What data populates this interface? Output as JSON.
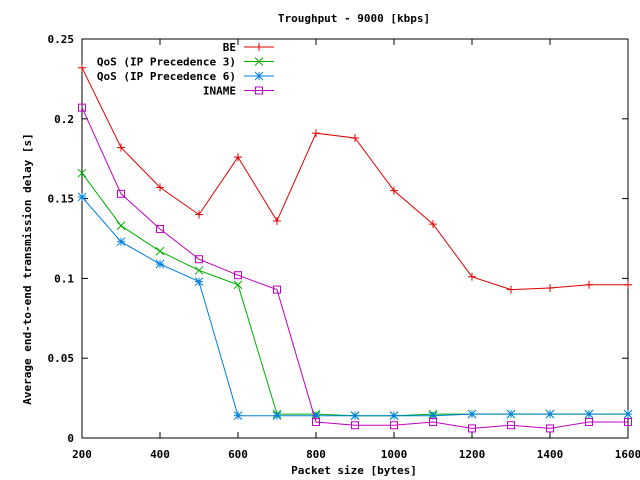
{
  "chart_data": {
    "type": "line",
    "title": "Troughput - 9000 [kbps]",
    "xlabel": "Packet size [bytes]",
    "ylabel": "Average end-to-end transmission delay [s]",
    "xlim": [
      200,
      1600
    ],
    "ylim": [
      0,
      0.25
    ],
    "xticks": [
      200,
      400,
      600,
      800,
      1000,
      1200,
      1400,
      1600
    ],
    "xtick_labels": [
      "200",
      "400",
      "600",
      "800",
      "1000",
      "1200",
      "1400",
      "1600"
    ],
    "yticks": [
      0,
      0.05,
      0.1,
      0.15,
      0.2,
      0.25
    ],
    "ytick_labels": [
      "0",
      "0.05",
      "0.1",
      "0.15",
      "0.2",
      "0.25"
    ],
    "grid": false,
    "legend_position": "top-right",
    "series": [
      {
        "name": "BE",
        "color": "#e00000",
        "marker": "plus",
        "x": [
          200,
          300,
          400,
          500,
          600,
          700,
          800,
          900,
          1000,
          1100,
          1200,
          1300,
          1400,
          1500,
          1600
        ],
        "y": [
          0.232,
          0.182,
          0.157,
          0.14,
          0.176,
          0.136,
          0.191,
          0.188,
          0.155,
          0.134,
          0.101,
          0.093,
          0.094,
          0.096,
          0.096
        ]
      },
      {
        "name": "QoS (IP Precedence 3)",
        "color": "#00b000",
        "marker": "cross",
        "x": [
          200,
          300,
          400,
          500,
          600,
          700,
          800,
          900,
          1000,
          1100,
          1200,
          1300,
          1400,
          1500,
          1600
        ],
        "y": [
          0.166,
          0.133,
          0.117,
          0.105,
          0.096,
          0.015,
          0.015,
          0.014,
          0.014,
          0.015,
          0.015,
          0.015,
          0.015,
          0.015,
          0.015
        ]
      },
      {
        "name": "QoS (IP Precedence 6)",
        "color": "#0080e0",
        "marker": "star",
        "x": [
          200,
          300,
          400,
          500,
          600,
          700,
          800,
          900,
          1000,
          1100,
          1200,
          1300,
          1400,
          1500,
          1600
        ],
        "y": [
          0.151,
          0.123,
          0.109,
          0.098,
          0.014,
          0.014,
          0.014,
          0.014,
          0.014,
          0.014,
          0.015,
          0.015,
          0.015,
          0.015,
          0.015
        ]
      },
      {
        "name": "INAME",
        "color": "#c000c0",
        "marker": "square",
        "x": [
          200,
          300,
          400,
          500,
          600,
          700,
          800,
          900,
          1000,
          1100,
          1200,
          1300,
          1400,
          1500,
          1600
        ],
        "y": [
          0.207,
          0.153,
          0.131,
          0.112,
          0.102,
          0.093,
          0.01,
          0.008,
          0.008,
          0.01,
          0.006,
          0.008,
          0.006,
          0.01,
          0.01
        ]
      }
    ]
  }
}
